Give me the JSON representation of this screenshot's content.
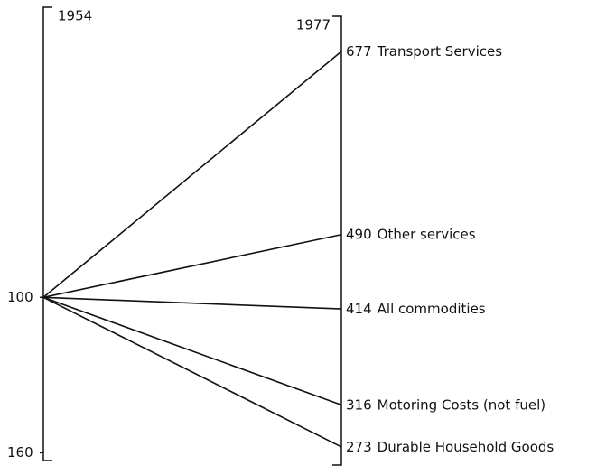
{
  "chart_data": {
    "type": "slope",
    "x": [
      "1954",
      "1977"
    ],
    "ylim": [
      163,
      -12
    ],
    "yticks": [
      100,
      160
    ],
    "y2lim": [
      254.5,
      713
    ],
    "color": "#111111",
    "series": [
      {
        "name": "Transport Services",
        "values": [
          100,
          677
        ]
      },
      {
        "name": "Other services",
        "values": [
          100,
          490
        ]
      },
      {
        "name": "All commodities",
        "values": [
          100,
          414
        ]
      },
      {
        "name": "Motoring Costs (not fuel)",
        "values": [
          100,
          316
        ]
      },
      {
        "name": "Durable Household Goods",
        "values": [
          100,
          273
        ]
      }
    ]
  }
}
